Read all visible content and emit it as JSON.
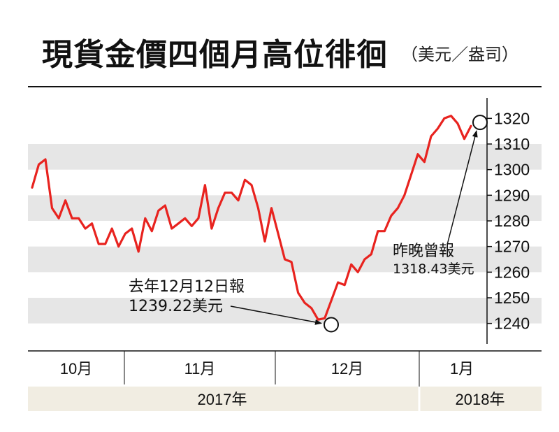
{
  "title": "現貨金價四個月高位徘徊",
  "unit": "（美元／盎司）",
  "chart_data": {
    "type": "line",
    "title": "現貨金價四個月高位徘徊",
    "unit": "（美元／盎司）",
    "ylim": [
      1232,
      1328
    ],
    "yticks": [
      1240,
      1250,
      1260,
      1270,
      1280,
      1290,
      1300,
      1310,
      1320
    ],
    "grid": "alternating horizontal bands",
    "line_color": "#e8231f",
    "band_color": "#e6e6e6",
    "month_labels": [
      "10月",
      "11月",
      "12月",
      "1月"
    ],
    "year_labels": [
      "2017年",
      "2018年"
    ],
    "series": [
      {
        "values": [
          1293,
          1302,
          1304,
          1285,
          1281,
          1288,
          1281,
          1281,
          1277,
          1279,
          1271,
          1271,
          1277,
          1270,
          1275,
          1277,
          1268,
          1281,
          1276,
          1284,
          1286,
          1277,
          1279,
          1281,
          1278,
          1281,
          1294,
          1277,
          1285,
          1291,
          1291,
          1288,
          1296,
          1294,
          1285,
          1272,
          1285,
          1275,
          1265,
          1264,
          1252,
          1248,
          1246,
          1241.5,
          1242,
          1249,
          1256,
          1255,
          1263,
          1260,
          1265,
          1267,
          1276,
          1276,
          1282,
          1285,
          1290,
          1298,
          1306,
          1303,
          1313,
          1316,
          1320,
          1321,
          1318,
          1312,
          1317
        ]
      }
    ],
    "annotations": [
      {
        "line1": "去年12月12日報",
        "line2": "1239.22美元",
        "value": 1239.22
      },
      {
        "line1": "昨晚曾報",
        "line2": "1318.43美元",
        "value": 1318.43
      }
    ]
  }
}
